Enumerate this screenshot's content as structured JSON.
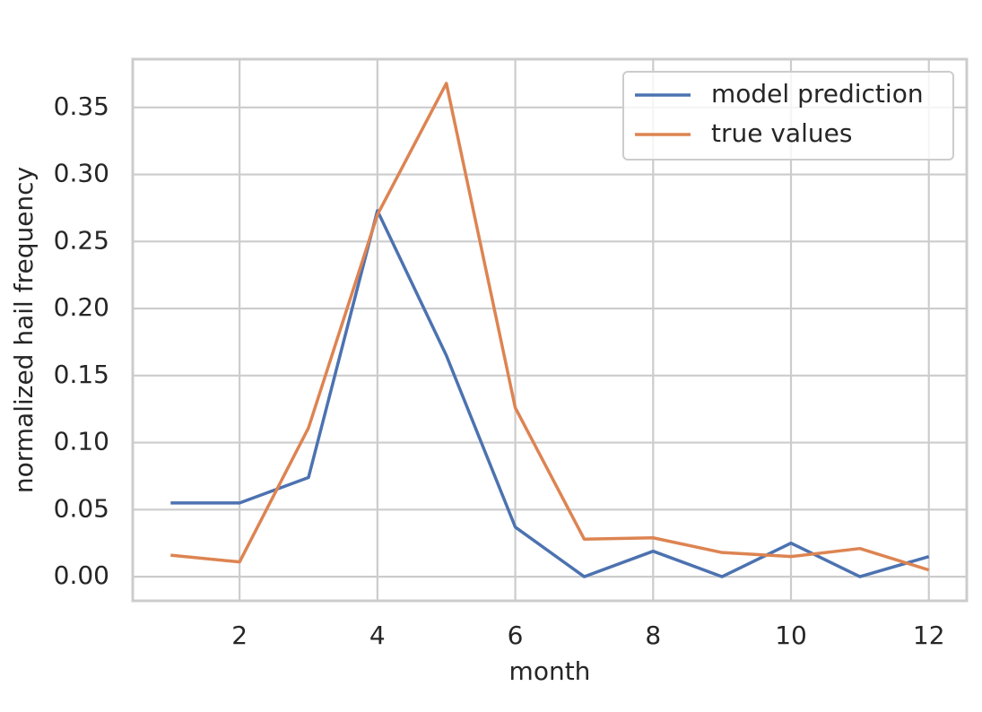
{
  "chart_data": {
    "type": "line",
    "x_label": "month",
    "y_label": "normalized hail frequency",
    "x": [
      1,
      2,
      3,
      4,
      5,
      6,
      7,
      8,
      9,
      10,
      11,
      12
    ],
    "series": [
      {
        "name": "model prediction",
        "color": "#4c72b0",
        "values": [
          0.055,
          0.055,
          0.074,
          0.273,
          0.165,
          0.037,
          0.0,
          0.019,
          0.0,
          0.025,
          0.0,
          0.015
        ]
      },
      {
        "name": "true values",
        "color": "#dd8452",
        "values": [
          0.016,
          0.011,
          0.111,
          0.27,
          0.368,
          0.126,
          0.028,
          0.029,
          0.018,
          0.015,
          0.021,
          0.005
        ]
      }
    ],
    "xlim": [
      0.45,
      12.55
    ],
    "xticks": [
      2,
      4,
      6,
      8,
      10,
      12
    ],
    "ylim": [
      -0.018,
      0.386
    ],
    "yticks": [
      {
        "value": 0,
        "label": "0.00"
      },
      {
        "value": 0.05,
        "label": "0.05"
      },
      {
        "value": 0.1,
        "label": "0.10"
      },
      {
        "value": 0.15,
        "label": "0.15"
      },
      {
        "value": 0.2,
        "label": "0.20"
      },
      {
        "value": 0.25,
        "label": "0.25"
      },
      {
        "value": 0.3,
        "label": "0.30"
      },
      {
        "value": 0.35,
        "label": "0.35"
      }
    ],
    "grid": true,
    "legend": "upper right"
  }
}
